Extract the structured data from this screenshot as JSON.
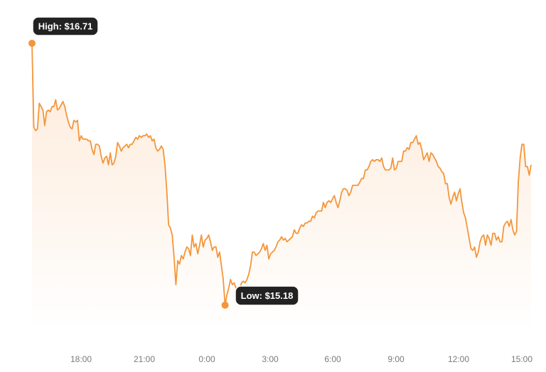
{
  "chart_data": {
    "type": "area",
    "title": "",
    "xlabel": "",
    "ylabel": "",
    "x_ticks": [
      "18:00",
      "21:00",
      "0:00",
      "3:00",
      "6:00",
      "9:00",
      "12:00",
      "15:00"
    ],
    "grid": false,
    "legend": "none",
    "series": [
      {
        "values": [
          16.71,
          16.22,
          16.2,
          16.21,
          16.36,
          16.34,
          16.32,
          16.23,
          16.31,
          16.32,
          16.31,
          16.34,
          16.34,
          16.38,
          16.32,
          16.33,
          16.35,
          16.37,
          16.34,
          16.29,
          16.25,
          16.22,
          16.21,
          16.26,
          16.25,
          16.26,
          16.14,
          16.17,
          16.15,
          16.15,
          16.15,
          16.14,
          16.14,
          16.09,
          16.06,
          16.12,
          16.12,
          16.11,
          16.05,
          16.01,
          16.04,
          16.05,
          16.0,
          16.07,
          16.0,
          16.01,
          16.05,
          16.13,
          16.11,
          16.08,
          16.1,
          16.11,
          16.12,
          16.1,
          16.12,
          16.12,
          16.14,
          16.16,
          16.15,
          16.17,
          16.16,
          16.17,
          16.17,
          16.18,
          16.16,
          16.17,
          16.14,
          16.15,
          16.1,
          16.08,
          16.09,
          16.11,
          16.09,
          16.0,
          15.85,
          15.65,
          15.63,
          15.59,
          15.46,
          15.3,
          15.44,
          15.42,
          15.47,
          15.45,
          15.49,
          15.52,
          15.51,
          15.47,
          15.59,
          15.52,
          15.54,
          15.48,
          15.53,
          15.59,
          15.52,
          15.56,
          15.57,
          15.59,
          15.55,
          15.5,
          15.52,
          15.52,
          15.46,
          15.49,
          15.41,
          15.33,
          15.18,
          15.24,
          15.28,
          15.33,
          15.3,
          15.31,
          15.28,
          15.27,
          15.27,
          15.31,
          15.32,
          15.31,
          15.33,
          15.36,
          15.41,
          15.49,
          15.49,
          15.47,
          15.48,
          15.49,
          15.51,
          15.54,
          15.5,
          15.53,
          15.45,
          15.48,
          15.49,
          15.5,
          15.52,
          15.55,
          15.56,
          15.58,
          15.56,
          15.57,
          15.55,
          15.56,
          15.57,
          15.58,
          15.62,
          15.6,
          15.6,
          15.63,
          15.65,
          15.64,
          15.66,
          15.66,
          15.67,
          15.67,
          15.7,
          15.69,
          15.72,
          15.73,
          15.73,
          15.73,
          15.78,
          15.75,
          15.78,
          15.79,
          15.78,
          15.8,
          15.82,
          15.78,
          15.75,
          15.79,
          15.84,
          15.86,
          15.86,
          15.85,
          15.82,
          15.84,
          15.88,
          15.88,
          15.88,
          15.88,
          15.9,
          15.92,
          15.92,
          15.97,
          15.97,
          15.99,
          16.02,
          16.03,
          16.02,
          16.03,
          16.03,
          16.02,
          16.04,
          15.99,
          15.97,
          15.97,
          15.97,
          15.98,
          16.04,
          15.97,
          15.98,
          16.02,
          16.02,
          16.02,
          16.08,
          16.08,
          16.1,
          16.09,
          16.13,
          16.13,
          16.15,
          16.17,
          16.12,
          16.13,
          16.09,
          16.03,
          16.05,
          16.07,
          16.02,
          16.07,
          16.06,
          16.04,
          16.02,
          15.99,
          15.98,
          15.96,
          15.95,
          15.89,
          15.89,
          15.81,
          15.77,
          15.81,
          15.84,
          15.79,
          15.83,
          15.86,
          15.78,
          15.72,
          15.69,
          15.63,
          15.57,
          15.51,
          15.5,
          15.52,
          15.46,
          15.49,
          15.55,
          15.58,
          15.59,
          15.53,
          15.59,
          15.57,
          15.53,
          15.6,
          15.6,
          15.56,
          15.58,
          15.55,
          15.55,
          15.64,
          15.66,
          15.67,
          15.64,
          15.68,
          15.62,
          15.59,
          15.61,
          15.9,
          16.04,
          16.12,
          16.12,
          15.99,
          15.99,
          15.94,
          16.0
        ]
      }
    ],
    "high": {
      "label": "High: $16.71",
      "value": 16.71
    },
    "low": {
      "label": "Low: $15.18",
      "value": 15.18
    },
    "ylim": [
      15.03,
      16.71
    ],
    "colors": {
      "line": "#f4963a",
      "area_top": "#fde8d5",
      "area_bottom": "#ffffff",
      "tick_text": "#7a7a7a",
      "callout_bg": "#222222",
      "callout_text": "#ffffff",
      "callout_border": "#ffffff"
    }
  }
}
